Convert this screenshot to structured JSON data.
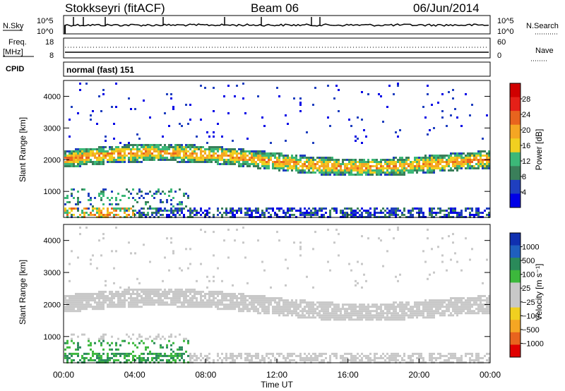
{
  "header": {
    "station": "Stokkseyri (fitACF)",
    "beam": "Beam 06",
    "date": "06/Jun/2014"
  },
  "aux_panels": {
    "nsky_label": "N.Sky",
    "nsky_ticks": [
      "10^5",
      "10^0"
    ],
    "nsearch_label": "N.Search",
    "nsearch_ticks": [
      "10^5",
      "10^0"
    ],
    "freq_label": "Freq.",
    "freq_unit": "[MHz]",
    "freq_ticks": [
      "18",
      "8"
    ],
    "nave_label": "Nave",
    "nave_ticks": [
      "60",
      "0"
    ],
    "cpid_label": "CPID",
    "cpid_value": "normal (fast) 151"
  },
  "colors": {
    "power_scale": [
      "#0000e6",
      "#1f3fbf",
      "#3a7f5a",
      "#3cb878",
      "#f0d020",
      "#f5a623",
      "#e8641e",
      "#e52018",
      "#d00000"
    ],
    "velocity_scale": [
      "#e00000",
      "#e8641e",
      "#f5a623",
      "#f0d020",
      "#c8c8c8",
      "#c8c8c8",
      "#3cb83c",
      "#2a8a5a",
      "#1f5fbf",
      "#1030b0"
    ]
  },
  "chart_data": [
    {
      "type": "heatmap",
      "name": "power",
      "ylabel": "Slant Range [km]",
      "yticks": [
        "4000",
        "3000",
        "2000",
        "1000"
      ],
      "ylim": [
        180,
        4500
      ],
      "xlim": [
        0,
        24
      ],
      "colorbar_label": "Power [dB]",
      "colorbar_ticks": [
        "28",
        "24",
        "20",
        "16",
        "12",
        "8",
        "4"
      ],
      "colorbar_range": [
        0,
        32
      ]
    },
    {
      "type": "heatmap",
      "name": "velocity",
      "ylabel": "Slant Range [km]",
      "yticks": [
        "4000",
        "3000",
        "2000",
        "1000"
      ],
      "ylim": [
        180,
        4500
      ],
      "xlim": [
        0,
        24
      ],
      "colorbar_label": "Velocity [m s⁻¹]",
      "colorbar_ticks": [
        "1000",
        "500",
        "100",
        "25",
        "−25",
        "−100",
        "−500",
        "−1000"
      ]
    }
  ],
  "xaxis": {
    "label": "Time UT",
    "ticks": [
      "00:00",
      "04:00",
      "08:00",
      "12:00",
      "16:00",
      "20:00",
      "00:00"
    ]
  }
}
